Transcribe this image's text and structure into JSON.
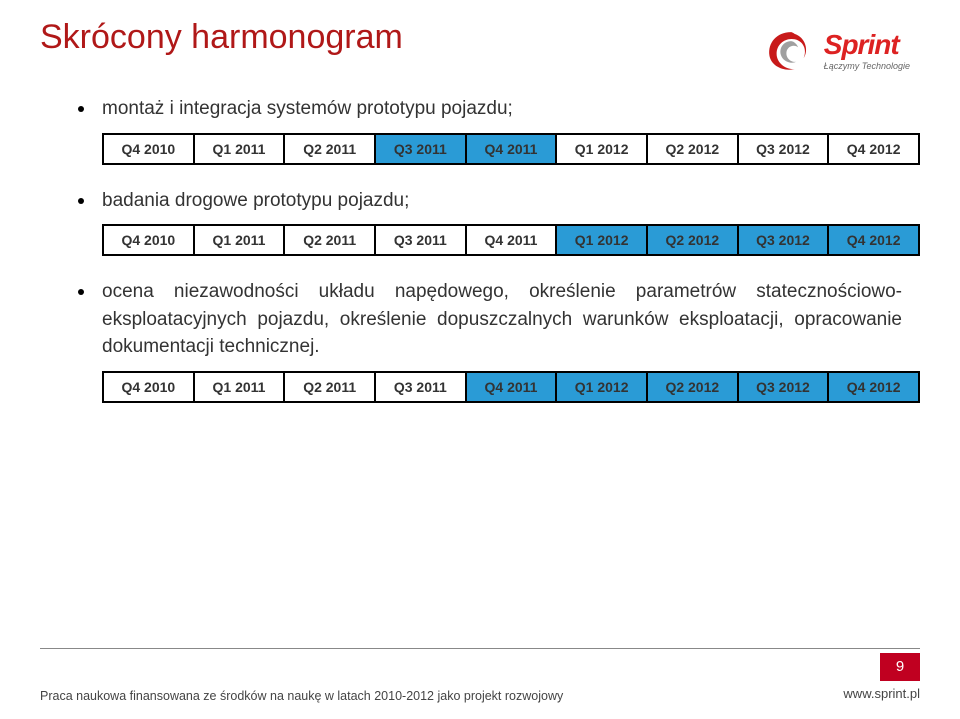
{
  "title_color": "#b01818",
  "highlight_color": "#2a9bd6",
  "title": "Skrócony harmonogram",
  "logo": {
    "word": "Sprint",
    "tagline": "Łączymy Technologie"
  },
  "quarters": [
    "Q4 2010",
    "Q1 2011",
    "Q2 2011",
    "Q3 2011",
    "Q4 2011",
    "Q1 2012",
    "Q2 2012",
    "Q3 2012",
    "Q4 2012"
  ],
  "items": [
    {
      "text": "montaż i integracja systemów prototypu pojazdu;",
      "highlight": [
        false,
        false,
        false,
        true,
        true,
        false,
        false,
        false,
        false
      ]
    },
    {
      "text": "badania drogowe prototypu pojazdu;",
      "highlight": [
        false,
        false,
        false,
        false,
        false,
        true,
        true,
        true,
        true
      ]
    },
    {
      "text": "ocena niezawodności układu napędowego, określenie parametrów statecznościowo-eksploatacyjnych pojazdu, określenie dopuszczalnych warunków eksploatacji, opracowanie dokumentacji technicznej.",
      "highlight": [
        false,
        false,
        false,
        false,
        true,
        true,
        true,
        true,
        true
      ]
    }
  ],
  "footer": {
    "text": "Praca naukowa finansowana ze środków na naukę w latach 2010-2012 jako projekt rozwojowy",
    "page": "9",
    "url": "www.sprint.pl"
  }
}
